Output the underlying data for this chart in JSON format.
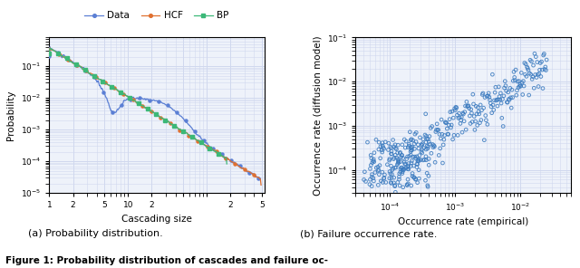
{
  "left_title": "(a) Probability distribution.",
  "right_title": "(b) Failure occurrence rate.",
  "figure_title": "Figure 1: Probability distribution of cascades and failure oc-",
  "left_xlabel": "Cascading size",
  "left_ylabel": "Probability",
  "right_xlabel": "Occurrence rate (empirical)",
  "right_ylabel": "Occurrence rate (diffusion model)",
  "legend_labels": [
    "Data",
    "HCF",
    "BP"
  ],
  "legend_colors": [
    "#5b7fd4",
    "#e07030",
    "#3cb878"
  ],
  "scatter_color": "#3a7abf",
  "bg_color": "#eef2fa",
  "grid_color": "#d0d8ee"
}
